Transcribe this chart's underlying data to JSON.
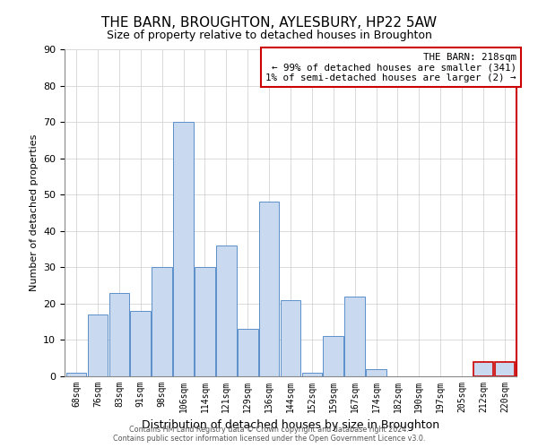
{
  "title": "THE BARN, BROUGHTON, AYLESBURY, HP22 5AW",
  "subtitle": "Size of property relative to detached houses in Broughton",
  "xlabel": "Distribution of detached houses by size in Broughton",
  "ylabel": "Number of detached properties",
  "bar_labels": [
    "68sqm",
    "76sqm",
    "83sqm",
    "91sqm",
    "98sqm",
    "106sqm",
    "114sqm",
    "121sqm",
    "129sqm",
    "136sqm",
    "144sqm",
    "152sqm",
    "159sqm",
    "167sqm",
    "174sqm",
    "182sqm",
    "190sqm",
    "197sqm",
    "205sqm",
    "212sqm",
    "220sqm"
  ],
  "bar_values": [
    1,
    17,
    23,
    18,
    30,
    70,
    30,
    36,
    13,
    48,
    21,
    1,
    11,
    22,
    2,
    0,
    0,
    0,
    0,
    4,
    4
  ],
  "bar_color": "#c8d9f0",
  "bar_edge_color": "#5b8fc9",
  "highlight_edge_color": "#cc0000",
  "annotation_title": "THE BARN: 218sqm",
  "annotation_line1": "← 99% of detached houses are smaller (341)",
  "annotation_line2": "1% of semi-detached houses are larger (2) →",
  "ylim": [
    0,
    90
  ],
  "yticks": [
    0,
    10,
    20,
    30,
    40,
    50,
    60,
    70,
    80,
    90
  ],
  "footer_line1": "Contains HM Land Registry data © Crown copyright and database right 2024.",
  "footer_line2": "Contains public sector information licensed under the Open Government Licence v3.0."
}
